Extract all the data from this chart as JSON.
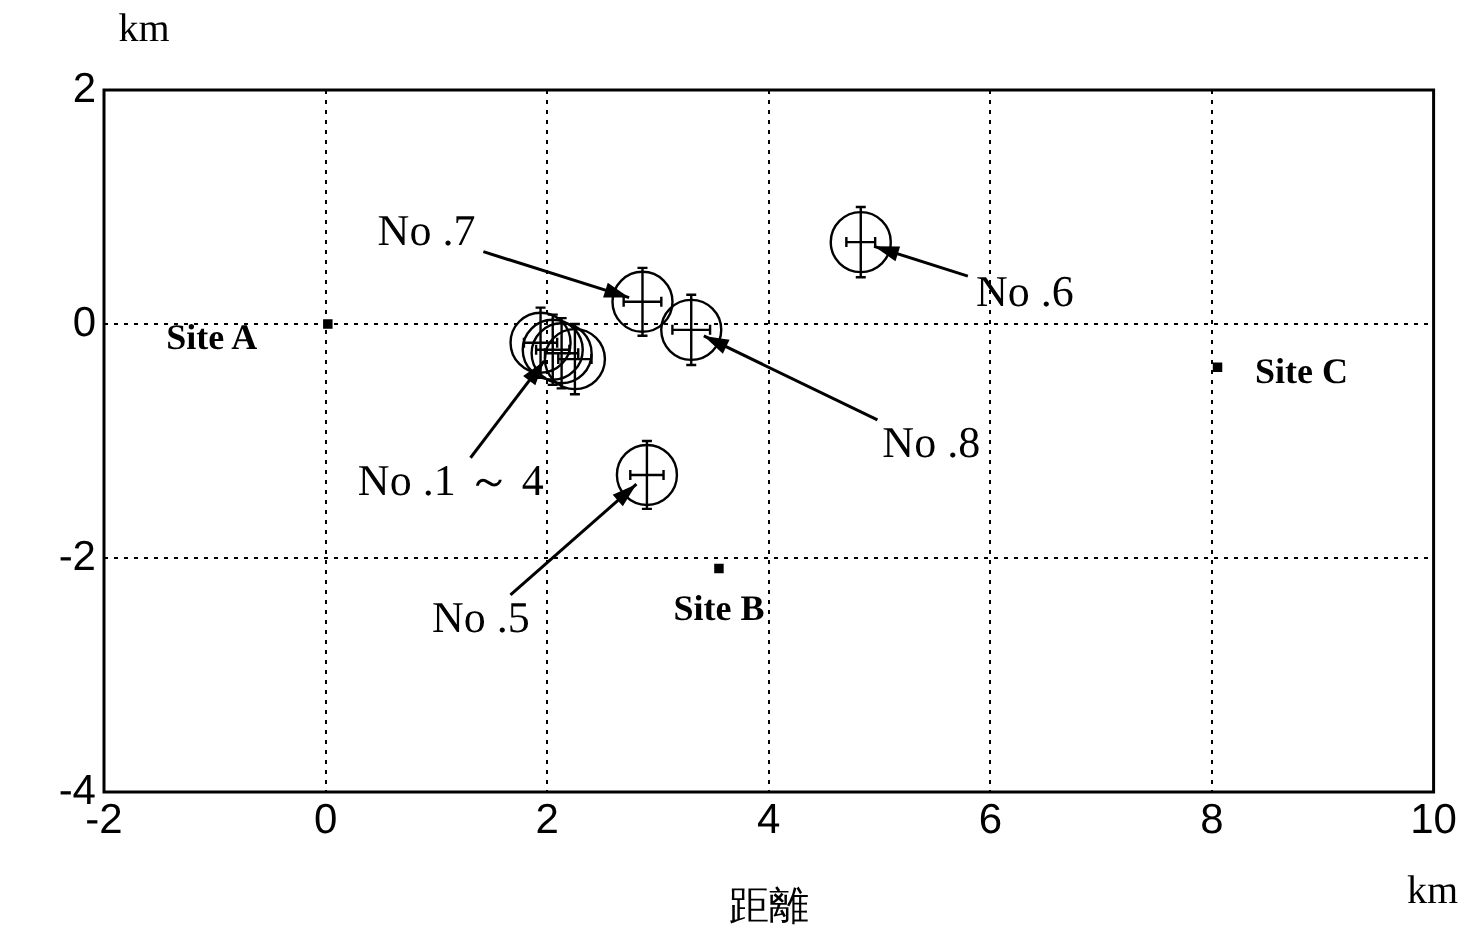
{
  "chart_data": {
    "type": "scatter",
    "xlabel": "距離",
    "ylabel": "km",
    "xlim": [
      -2,
      10
    ],
    "xticks": [
      -2,
      0,
      2,
      4,
      6,
      8,
      10
    ],
    "ylim": [
      -4,
      2
    ],
    "yticks": [
      -4,
      -2,
      0,
      2
    ],
    "grid": true,
    "legend": false,
    "series": [
      {
        "color": "#000000",
        "marker": "circle",
        "x": [
          1.94,
          2.05,
          2.13,
          2.25,
          2.9,
          4.83,
          2.86,
          3.3
        ],
        "values": [
          -0.16,
          -0.22,
          -0.25,
          -0.3,
          -1.29,
          0.7,
          0.19,
          -0.05
        ],
        "errors": [
          0.3,
          0.3,
          0.3,
          0.3,
          0.29,
          0.3,
          0.29,
          0.3
        ],
        "xerrors": [
          0.15,
          0.15,
          0.15,
          0.15,
          0.15,
          0.13,
          0.17,
          0.17
        ]
      },
      {
        "color": "#000000",
        "marker": "square",
        "x": [
          0.02,
          3.55,
          8.05
        ],
        "values": [
          0,
          -2.09,
          -0.37
        ]
      }
    ],
    "annotations": [
      {
        "text": "No .7",
        "x": 2.86,
        "y": 0.19
      },
      {
        "text": "No .6",
        "x": 4.83,
        "y": 0.7
      },
      {
        "text": "No .8",
        "x": 3.3,
        "y": -0.05
      },
      {
        "text": "No .1 ～ 4",
        "x": 2.05,
        "y": -0.22
      },
      {
        "text": "No .5",
        "x": 2.9,
        "y": -1.29
      },
      {
        "text": "Site A",
        "x": 0.02,
        "y": 0
      },
      {
        "text": "Site B",
        "x": 3.55,
        "y": -2.09
      },
      {
        "text": "Site C",
        "x": 8.05,
        "y": -0.37
      },
      "km"
    ]
  }
}
